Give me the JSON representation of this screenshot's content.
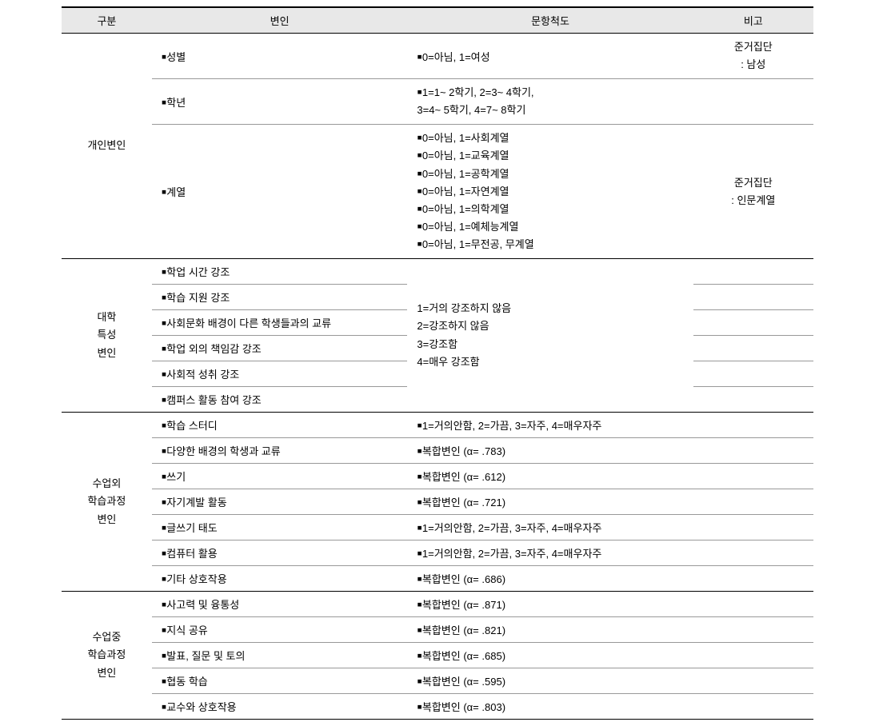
{
  "headers": {
    "category": "구분",
    "variable": "변인",
    "scale": "문항척도",
    "note": "비고"
  },
  "sections": [
    {
      "category": "개인변인",
      "rows": [
        {
          "variable": "￭성별",
          "scale": "￭0=아님,  1=여성",
          "note": "준거집단\n: 남성"
        },
        {
          "variable": "￭학년",
          "scale": "￭1=1~ 2학기,  2=3~ 4학기,\n  3=4~ 5학기,  4=7~ 8학기",
          "note": ""
        },
        {
          "variable": "￭계열",
          "scale": "￭0=아님,  1=사회계열\n￭0=아님,  1=교육계열\n￭0=아님,  1=공학계열\n￭0=아님,  1=자연계열\n￭0=아님,  1=의학계열\n￭0=아님,  1=예체능계열\n￭0=아님,  1=무전공,  무계열",
          "note": "준거집단\n: 인문계열"
        }
      ]
    },
    {
      "category": "대학\n특성\n변인",
      "sharedScale": " 1=거의 강조하지 않음\n 2=강조하지 않음\n 3=강조함\n 4=매우 강조함",
      "rows": [
        {
          "variable": "￭학업 시간 강조",
          "note": ""
        },
        {
          "variable": "￭학습 지원 강조",
          "note": ""
        },
        {
          "variable": "￭사회문화 배경이 다른 학생들과의 교류",
          "note": ""
        },
        {
          "variable": "￭학업 외의 책임감 강조",
          "note": ""
        },
        {
          "variable": "￭사회적 성취 강조",
          "note": ""
        },
        {
          "variable": "￭캠퍼스 활동 참여 강조",
          "note": ""
        }
      ]
    },
    {
      "category": "수업외\n학습과정\n변인",
      "rows": [
        {
          "variable": "￭학습 스터디",
          "scale": "￭1=거의안함, 2=가끔, 3=자주, 4=매우자주",
          "note": ""
        },
        {
          "variable": "￭다양한 배경의 학생과 교류",
          "scale": "￭복합변인 (α= .783)",
          "note": ""
        },
        {
          "variable": "￭쓰기",
          "scale": "￭복합변인 (α= .612)",
          "note": ""
        },
        {
          "variable": "￭자기계발 활동",
          "scale": "￭복합변인 (α= .721)",
          "note": ""
        },
        {
          "variable": "￭글쓰기 태도",
          "scale": "￭1=거의안함, 2=가끔, 3=자주, 4=매우자주",
          "note": ""
        },
        {
          "variable": "￭컴퓨터 활용",
          "scale": "￭1=거의안함, 2=가끔, 3=자주, 4=매우자주",
          "note": ""
        },
        {
          "variable": "￭기타 상호작용",
          "scale": "￭복합변인 (α= .686)",
          "note": ""
        }
      ]
    },
    {
      "category": "수업중\n학습과정\n변인",
      "rows": [
        {
          "variable": "￭사고력 및 융통성",
          "scale": "￭복합변인 (α= .871)",
          "note": ""
        },
        {
          "variable": "￭지식 공유",
          "scale": "￭복합변인 (α= .821)",
          "note": ""
        },
        {
          "variable": "￭발표,  질문 및 토의",
          "scale": "￭복합변인 (α= .685)",
          "note": ""
        },
        {
          "variable": "￭협동 학습",
          "scale": "￭복합변인 (α= .595)",
          "note": ""
        },
        {
          "variable": "￭교수와 상호작용",
          "scale": "￭복합변인 (α= .803)",
          "note": ""
        }
      ]
    }
  ]
}
